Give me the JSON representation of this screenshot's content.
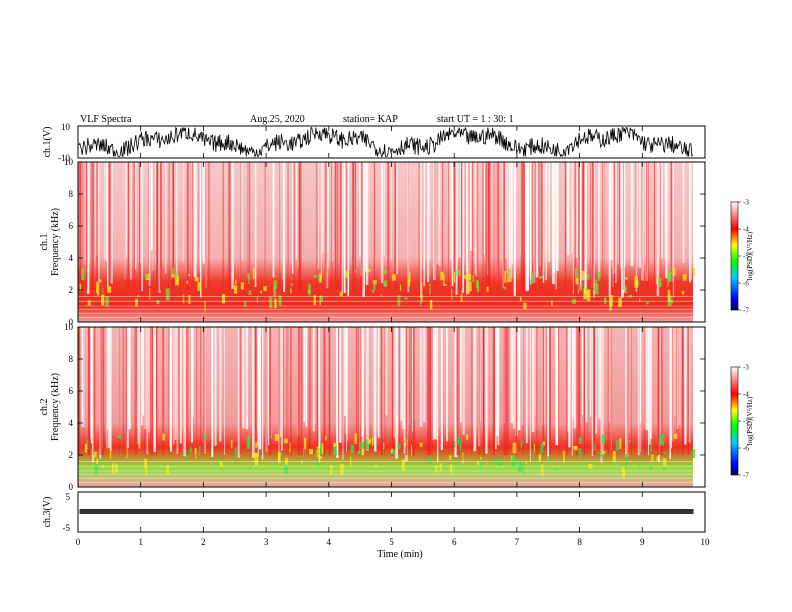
{
  "header": {
    "title": "VLF Spectra",
    "date": "Aug.25, 2020",
    "station": "station= KAP",
    "start": "start  UT =  1 : 30: 1"
  },
  "chart_data": [
    {
      "type": "line",
      "panel": "ch1-waveform",
      "ylabel": "ch.1(V)",
      "ylim": [
        -10,
        10
      ],
      "yticks": [
        "10",
        "-10"
      ],
      "xlim": [
        0,
        10
      ],
      "note": "dense waveform trace"
    },
    {
      "type": "heatmap",
      "panel": "ch1-spectrogram",
      "ylabel": "ch.1\nFrequency (kHz)",
      "ylim": [
        0,
        10
      ],
      "yticks": [
        "0",
        "2",
        "4",
        "6",
        "8",
        "10"
      ],
      "xlim": [
        0,
        9.8
      ],
      "colorbar": {
        "label": "log(PSD)(V²/Hz)",
        "range": [
          -7,
          -3
        ],
        "ticks": [
          "-3",
          "-4",
          "-5",
          "-6",
          "-7"
        ],
        "colors": [
          "#000066",
          "#0000ff",
          "#00ccff",
          "#00ff00",
          "#ffff00",
          "#ff0000",
          "#ffffff"
        ]
      }
    },
    {
      "type": "heatmap",
      "panel": "ch2-spectrogram",
      "ylabel": "ch.2\nFrequency (kHz)",
      "ylim": [
        0,
        10
      ],
      "yticks": [
        "0",
        "2",
        "4",
        "6",
        "8",
        "10"
      ],
      "xlim": [
        0,
        9.8
      ],
      "colorbar": {
        "label": "log(PSD)(V²/Hz)",
        "range": [
          -7,
          -3
        ],
        "ticks": [
          "-3",
          "-4",
          "-5",
          "-6",
          "-7"
        ],
        "colors": [
          "#000066",
          "#0000ff",
          "#00ccff",
          "#00ff00",
          "#ffff00",
          "#ff0000",
          "#ffffff"
        ]
      }
    },
    {
      "type": "line",
      "panel": "ch3-waveform",
      "ylabel": "ch.3(V)",
      "ylim": [
        -5,
        5
      ],
      "yticks": [
        "5",
        "-5"
      ],
      "xlim": [
        0,
        10
      ],
      "xlabel": "Time  (min)",
      "xticks": [
        "0",
        "1",
        "2",
        "3",
        "4",
        "5",
        "6",
        "7",
        "8",
        "9",
        "10"
      ],
      "note": "narrow constant-amplitude band near -1 V"
    }
  ]
}
